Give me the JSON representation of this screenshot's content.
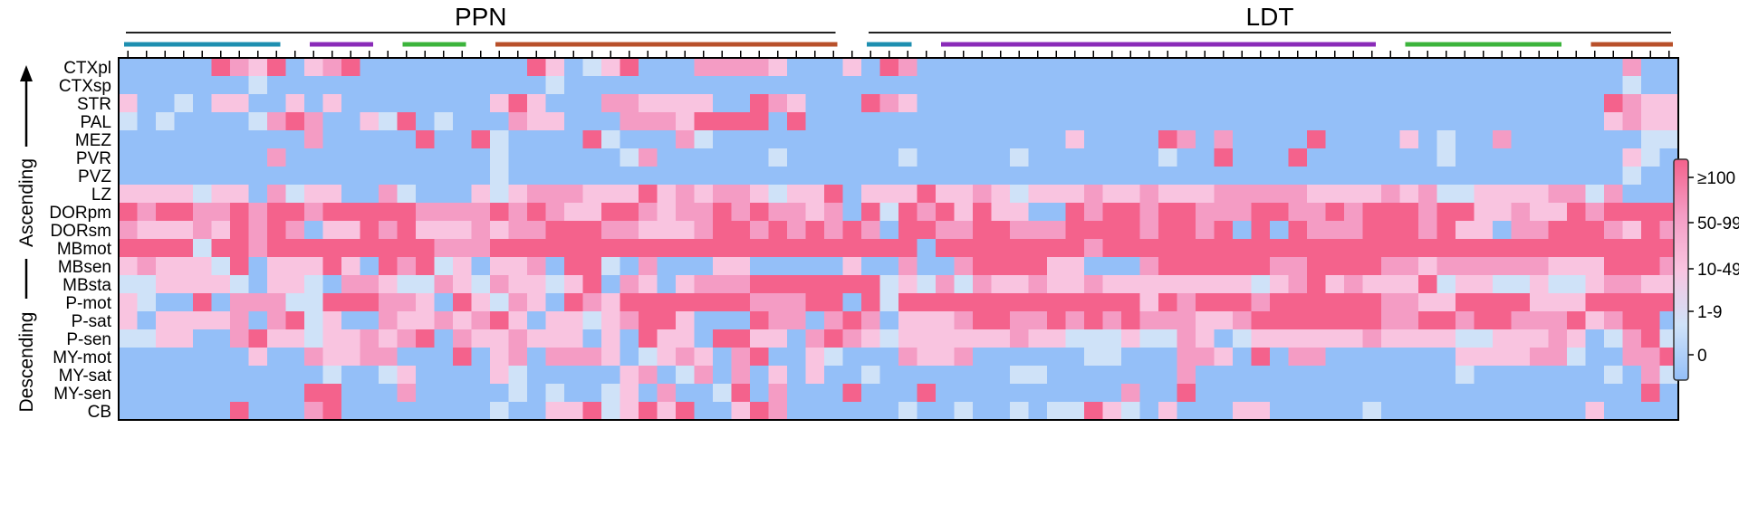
{
  "chart_data": {
    "type": "heatmap",
    "groups": [
      {
        "label": "PPN",
        "col_start": 0,
        "col_end": 38
      },
      {
        "label": "LDT",
        "col_start": 40,
        "col_end": 83
      }
    ],
    "subgroups": [
      {
        "col_start": 0,
        "col_end": 8,
        "color": "#1e8fb0"
      },
      {
        "col_start": 10,
        "col_end": 13,
        "color": "#8a2bb8"
      },
      {
        "col_start": 15,
        "col_end": 18,
        "color": "#3cb43c"
      },
      {
        "col_start": 20,
        "col_end": 38,
        "color": "#b8502a"
      },
      {
        "col_start": 40,
        "col_end": 42,
        "color": "#1e8fb0"
      },
      {
        "col_start": 44,
        "col_end": 67,
        "color": "#8a2bb8"
      },
      {
        "col_start": 69,
        "col_end": 77,
        "color": "#3cb43c"
      },
      {
        "col_start": 79,
        "col_end": 83,
        "color": "#b8502a"
      }
    ],
    "rows": [
      "CTXpl",
      "CTXsp",
      "STR",
      "PAL",
      "MEZ",
      "PVR",
      "PVZ",
      "LZ",
      "DORpm",
      "DORsm",
      "MBmot",
      "MBsen",
      "MBsta",
      "P-mot",
      "P-sat",
      "P-sen",
      "MY-mot",
      "MY-sat",
      "MY-sen",
      "CB"
    ],
    "side_labels": [
      {
        "label": "Ascending",
        "direction": "up"
      },
      {
        "label": "Descending",
        "direction": "down"
      }
    ],
    "legend": {
      "labels": [
        "≥100",
        "50-99",
        "10-49",
        "1-9",
        "0"
      ],
      "colors": [
        "#f4628c",
        "#f49cc4",
        "#f9c4e0",
        "#cfe2f8",
        "#94bff8"
      ]
    },
    "ncols": 84,
    "values": [
      "000004324023400000000042012400033332000204300000000000000000000000000000000000000300",
      "000000010000000000000001000000000000000000000000000000000000000000000000000000000100",
      "200102200202000000002420003322220043200043200000000000000000000000000000000000004322",
      "101000013430021401000322000333244440400000000000000000000000000000000000000000002322",
      "000000000030000040041000041000310000000000000000000200004303000040000201003000000011",
      "000000003000000000001000000130000001000000100000100000001004000400000001000000000210",
      "000000000000000000001000000000000000000000000000000000000000000000000000000000000100",
      "222212203122003100021233322242323321224022242232122232232223333322223231122223313000",
      "434433434434444433334343224432334343323041434242200434434433344334344434422322434444",
      "322232434302243422232334443322234434343430443344333444434434040433344434220334443243",
      "444414434444444443334444444444444444444444404444444434444444444444444444444444444444",
      "232221402224204341202230441030002200000200300344442200034444443344443323333332224443",
      "112222102210332113213221240320233344444441213132232232222222212342322241221121123322",
      "210040333114443320421320432444444433344041444444444444424344434444443322444422244444",
      "202222303412003223234202212344200043303430222344334343433322344444443344344333423440",
      "112200342212232340322322202042204422034321222222322111211320122222232222112223201341",
      "000000020032233000402303332012320340021000322300000011000332040330000000222233100334",
      "000000000001001200002100000230130302020010000000110000000300000000000000100000001031",
      "000000000044000300000101001203001403000400040000000000300400000000000000000000000040",
      "000000400034000000001002241242400243000000100100101142102000220000010000000000020000"
    ]
  }
}
